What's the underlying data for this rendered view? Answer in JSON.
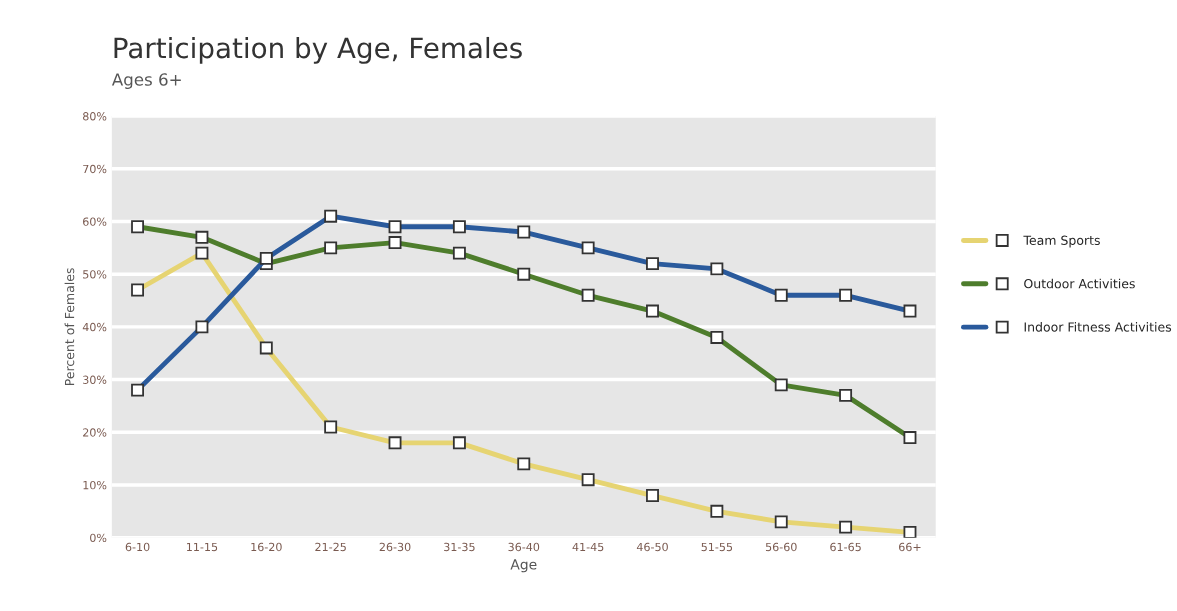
{
  "chart_data": {
    "type": "line",
    "title": "Participation by Age, Females",
    "subtitle": "Ages 6+",
    "xlabel": "Age",
    "ylabel": "Percent of Females",
    "categories": [
      "6-10",
      "11-15",
      "16-20",
      "21-25",
      "26-30",
      "31-35",
      "36-40",
      "41-45",
      "46-50",
      "51-55",
      "56-60",
      "61-65",
      "66+"
    ],
    "series": [
      {
        "name": "Team Sports",
        "color": "#e6d472",
        "values": [
          47,
          54,
          36,
          21,
          18,
          18,
          14,
          11,
          8,
          5,
          3,
          2,
          1
        ]
      },
      {
        "name": "Outdoor Activities",
        "color": "#4e7d2c",
        "values": [
          59,
          57,
          52,
          55,
          56,
          54,
          50,
          46,
          43,
          38,
          29,
          27,
          19
        ]
      },
      {
        "name": "Indoor Fitness Activities",
        "color": "#2a5a9c",
        "values": [
          28,
          40,
          53,
          61,
          59,
          59,
          58,
          55,
          52,
          51,
          46,
          46,
          43
        ]
      }
    ],
    "ylim": [
      0,
      80
    ],
    "yticks": [
      {
        "value": 0,
        "label": "0%"
      },
      {
        "value": 10,
        "label": "10%"
      },
      {
        "value": 20,
        "label": "20%"
      },
      {
        "value": 30,
        "label": "30%"
      },
      {
        "value": 40,
        "label": "40%"
      },
      {
        "value": 50,
        "label": "50%"
      },
      {
        "value": 60,
        "label": "60%"
      },
      {
        "value": 70,
        "label": "70%"
      },
      {
        "value": 80,
        "label": "80%"
      }
    ],
    "grid": "y",
    "legend": "right",
    "marker": "square",
    "line_style": "solid"
  }
}
